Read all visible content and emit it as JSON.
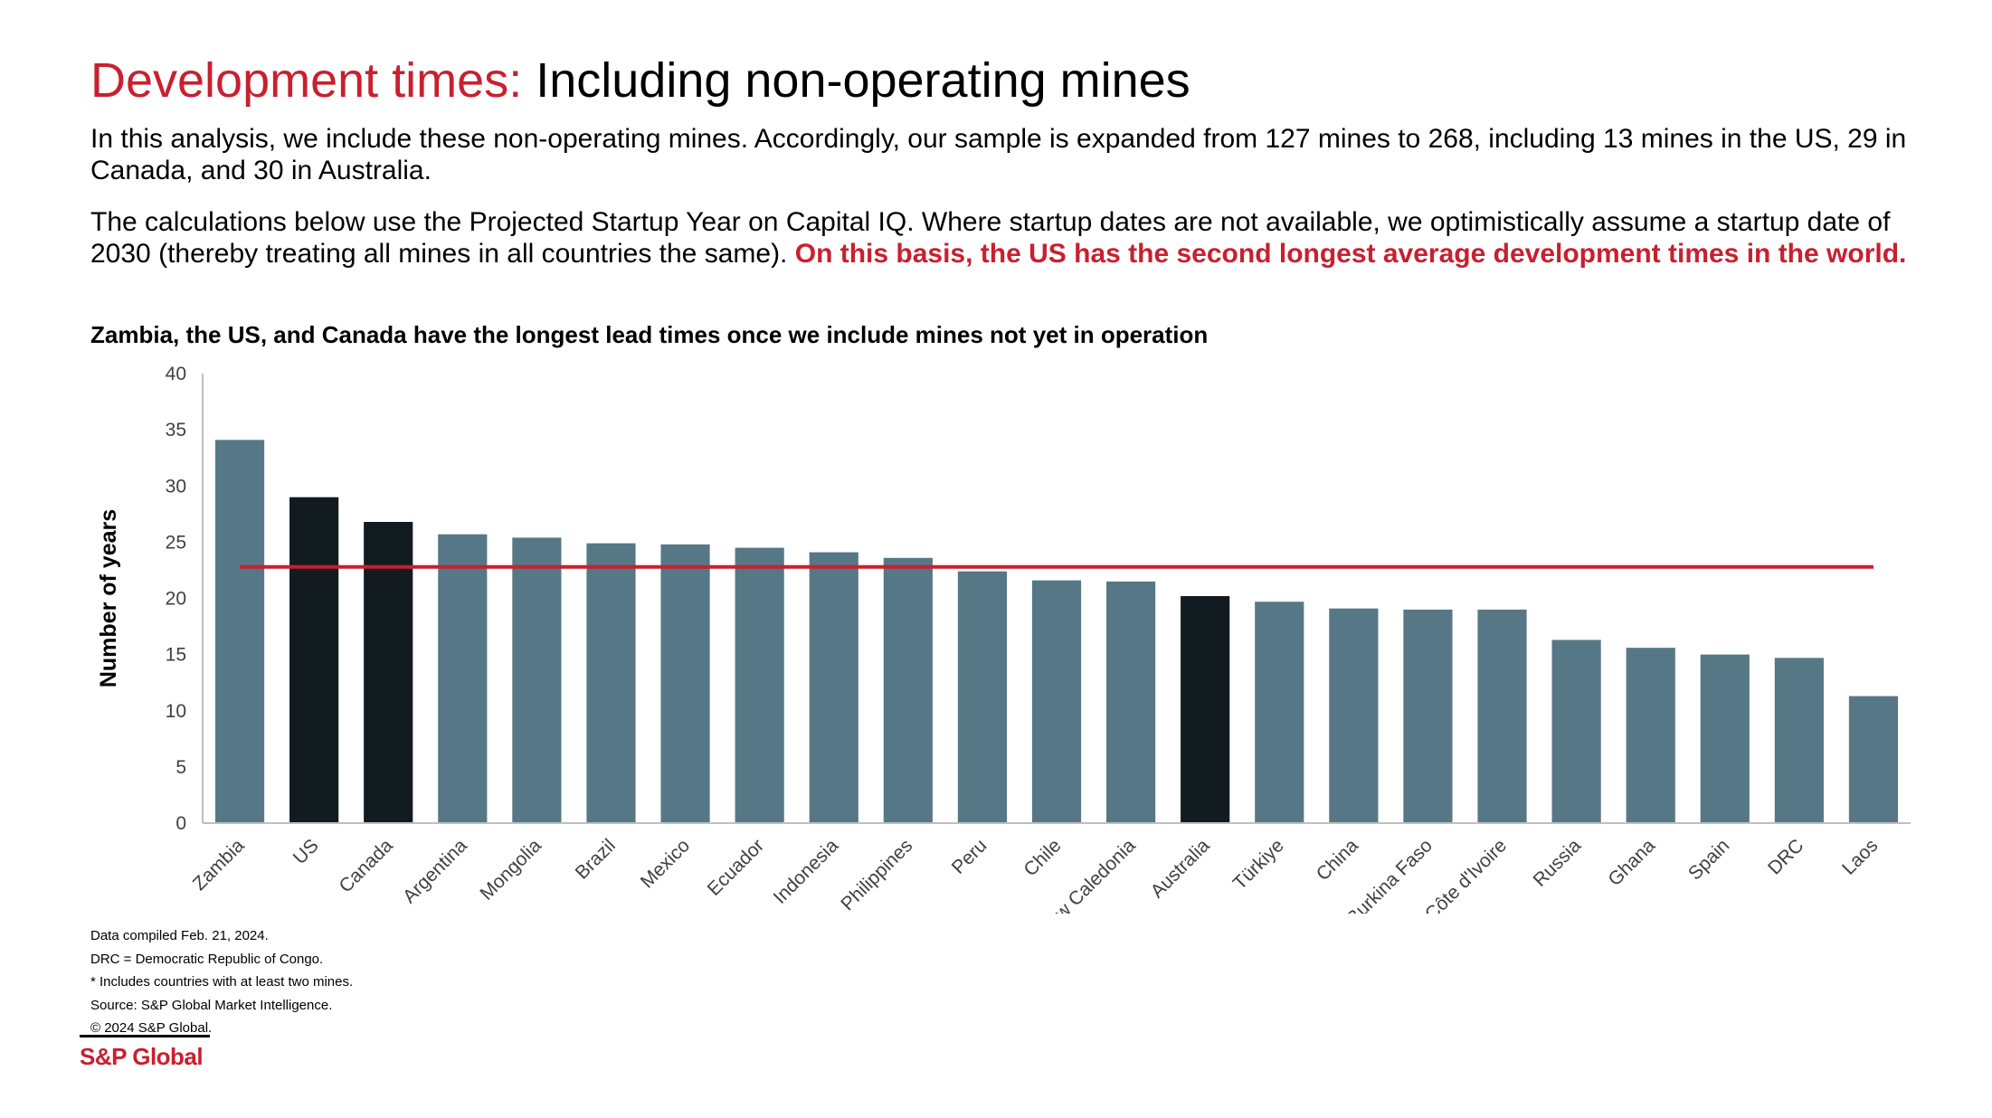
{
  "header": {
    "title_accent": "Development times:",
    "title_rest": "Including non-operating mines"
  },
  "intro": {
    "paragraph_1": "In this analysis, we include these non-operating mines. Accordingly, our sample is expanded from 127 mines to 268, including 13 mines in the US, 29 in Canada, and 30 in Australia.",
    "paragraph_2": "The calculations below use the Projected Startup Year on Capital IQ. Where startup dates are not available, we optimistically assume a startup date of 2030 (thereby treating all mines in all countries the same).",
    "paragraph_2_highlight": "On this basis, the US has the second longest average development times in the world."
  },
  "colors": {
    "accent": "#c8202f",
    "bar_default": "#567886",
    "bar_highlight": "#121b1f",
    "average_line": "#c8202f",
    "axis": "#bfbfbf",
    "tick_text": "#404040"
  },
  "chart_data": {
    "type": "bar",
    "title": "Zambia, the US, and Canada have the longest lead times once we include mines not yet in operation",
    "xlabel": "",
    "ylabel": "Number of years",
    "ylim": [
      0,
      40
    ],
    "yticks": [
      0,
      5,
      10,
      15,
      20,
      25,
      30,
      35,
      40
    ],
    "grid": false,
    "legend": "none",
    "categories": [
      "Zambia",
      "US",
      "Canada",
      "Argentina",
      "Mongolia",
      "Brazil",
      "Mexico",
      "Ecuador",
      "Indonesia",
      "Philippines",
      "Peru",
      "Chile",
      "New Caledonia",
      "Australia",
      "Türkiye",
      "China",
      "Burkina Faso",
      "Côte d'Ivoire",
      "Russia",
      "Ghana",
      "Spain",
      "DRC",
      "Laos"
    ],
    "values": [
      34.1,
      29.0,
      26.8,
      25.7,
      25.4,
      24.9,
      24.8,
      24.5,
      24.1,
      23.6,
      22.4,
      21.6,
      21.5,
      20.2,
      19.7,
      19.1,
      19.0,
      19.0,
      16.3,
      15.6,
      15.0,
      14.7,
      11.3
    ],
    "highlighted_categories": [
      "US",
      "Canada",
      "Australia"
    ],
    "average_line": 22.8
  },
  "footnotes": [
    "Data compiled Feb. 21, 2024.",
    "DRC = Democratic Republic of Congo.",
    "* Includes countries with at least two mines.",
    "Source: S&P Global Market Intelligence.",
    "© 2024 S&P Global."
  ],
  "brand": {
    "logo_text": "S&P Global"
  }
}
